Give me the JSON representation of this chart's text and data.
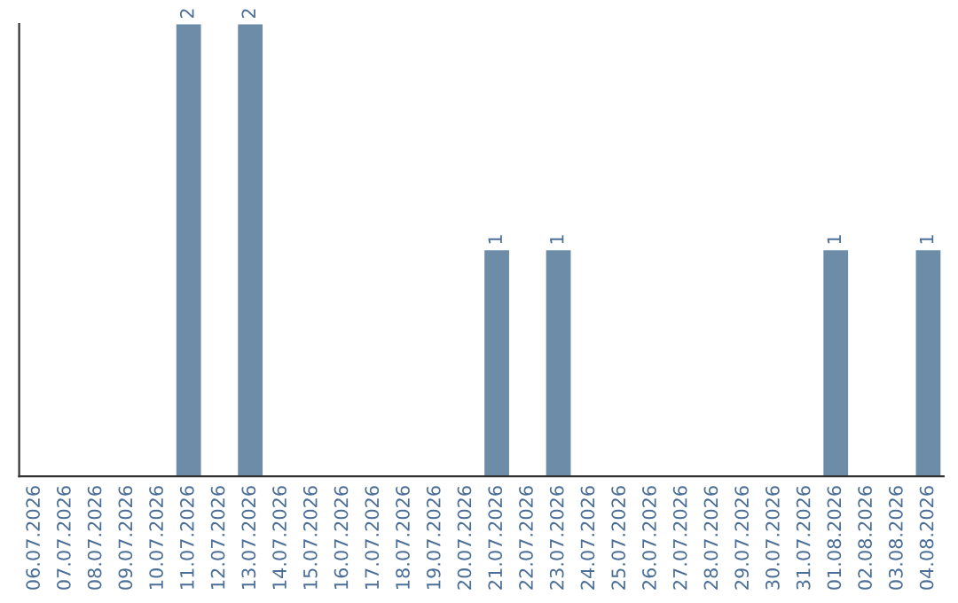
{
  "chart_data": {
    "type": "bar",
    "categories": [
      "06.07.2026",
      "07.07.2026",
      "08.07.2026",
      "09.07.2026",
      "10.07.2026",
      "11.07.2026",
      "12.07.2026",
      "13.07.2026",
      "14.07.2026",
      "15.07.2026",
      "16.07.2026",
      "17.07.2026",
      "18.07.2026",
      "19.07.2026",
      "20.07.2026",
      "21.07.2026",
      "22.07.2026",
      "23.07.2026",
      "24.07.2026",
      "25.07.2026",
      "26.07.2026",
      "27.07.2026",
      "28.07.2026",
      "29.07.2026",
      "30.07.2026",
      "31.07.2026",
      "01.08.2026",
      "02.08.2026",
      "03.08.2026",
      "04.08.2026"
    ],
    "values": [
      0,
      0,
      0,
      0,
      0,
      2,
      0,
      2,
      0,
      0,
      0,
      0,
      0,
      0,
      0,
      1,
      0,
      1,
      0,
      0,
      0,
      0,
      0,
      0,
      0,
      0,
      1,
      0,
      0,
      1
    ],
    "value_labels": [
      null,
      null,
      null,
      null,
      null,
      "2",
      null,
      "2",
      null,
      null,
      null,
      null,
      null,
      null,
      null,
      "1",
      null,
      "1",
      null,
      null,
      null,
      null,
      null,
      null,
      null,
      null,
      "1",
      null,
      null,
      "1"
    ],
    "color": "#6d8ca8",
    "tick_labels": "x",
    "grid": false,
    "legend": false
  }
}
